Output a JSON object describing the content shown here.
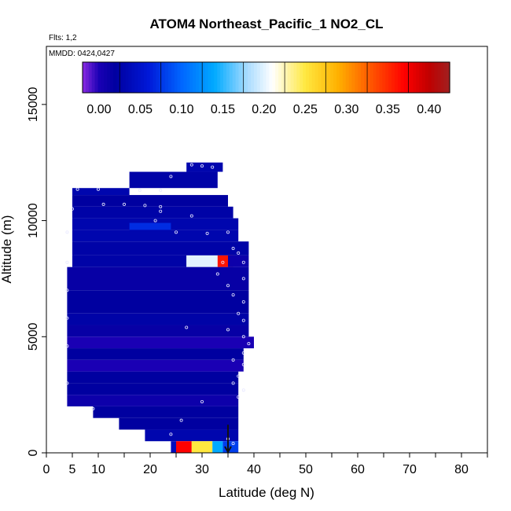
{
  "chart_data": {
    "type": "heatmap",
    "title": "ATOM4 Northeast_Pacific_1 NO2_CL",
    "subtitle_lines": [
      "Flts: 1,2",
      "MMDD: 0424,0427"
    ],
    "xlabel": "Latitude (deg N)",
    "ylabel": "Altitude (m)",
    "xlim": [
      0,
      85
    ],
    "ylim": [
      0,
      17500
    ],
    "x_ticks": [
      0,
      5,
      10,
      20,
      30,
      40,
      50,
      60,
      70,
      80
    ],
    "x_minor_ticks": [
      15,
      25,
      35,
      45,
      55,
      65,
      75,
      85
    ],
    "y_ticks": [
      0,
      5000,
      10000,
      15000
    ],
    "colorbar": {
      "min": -0.02,
      "max": 0.425,
      "ticks": [
        0.0,
        0.05,
        0.1,
        0.15,
        0.2,
        0.25,
        0.3,
        0.35,
        0.4
      ],
      "tick_labels": [
        "0.00",
        "0.05",
        "0.10",
        "0.15",
        "0.20",
        "0.25",
        "0.30",
        "0.35",
        "0.40"
      ],
      "stops": [
        {
          "v": -0.02,
          "c": "#8a2be2"
        },
        {
          "v": 0.0,
          "c": "#1a00b4"
        },
        {
          "v": 0.02,
          "c": "#0000a0"
        },
        {
          "v": 0.06,
          "c": "#0018d8"
        },
        {
          "v": 0.1,
          "c": "#0066ff"
        },
        {
          "v": 0.14,
          "c": "#00aaff"
        },
        {
          "v": 0.18,
          "c": "#aadcff"
        },
        {
          "v": 0.21,
          "c": "#ffffff"
        },
        {
          "v": 0.25,
          "c": "#ffe840"
        },
        {
          "v": 0.29,
          "c": "#ffb000"
        },
        {
          "v": 0.33,
          "c": "#ff5500"
        },
        {
          "v": 0.37,
          "c": "#ff0000"
        },
        {
          "v": 0.4,
          "c": "#c00000"
        },
        {
          "v": 0.425,
          "c": "#a02020"
        }
      ]
    },
    "cells": [
      [
        27,
        34,
        12100,
        12500,
        0.03
      ],
      [
        16,
        33,
        11400,
        12100,
        0.025
      ],
      [
        5,
        16,
        11100,
        11400,
        0.03
      ],
      [
        5,
        35,
        10600,
        11100,
        0.02
      ],
      [
        5,
        36,
        10100,
        10600,
        0.025
      ],
      [
        5,
        37,
        9600,
        10100,
        0.03
      ],
      [
        16,
        24,
        9400,
        9900,
        0.07
      ],
      [
        5,
        37,
        9100,
        9600,
        0.03
      ],
      [
        5,
        39,
        8500,
        9100,
        0.025
      ],
      [
        5,
        27,
        8000,
        8500,
        0.025
      ],
      [
        27,
        33,
        8000,
        8500,
        0.2
      ],
      [
        33,
        36,
        8000,
        8500,
        0.36
      ],
      [
        35,
        39,
        8000,
        8500,
        0.01
      ],
      [
        4,
        39,
        7000,
        8000,
        0.015
      ],
      [
        4,
        39,
        6000,
        7000,
        0.02
      ],
      [
        4,
        39,
        5500,
        6000,
        0.025
      ],
      [
        4,
        39,
        5000,
        5500,
        0.015
      ],
      [
        4,
        40,
        4500,
        5000,
        0.0
      ],
      [
        4,
        38,
        4000,
        4500,
        0.02
      ],
      [
        4,
        38,
        3500,
        4000,
        0.0
      ],
      [
        4,
        37,
        3000,
        3500,
        0.02
      ],
      [
        4,
        37,
        2500,
        3000,
        0.02
      ],
      [
        4,
        37,
        2000,
        2500,
        0.01
      ],
      [
        9,
        37,
        1500,
        2000,
        0.02
      ],
      [
        14,
        37,
        1000,
        1500,
        0.02
      ],
      [
        19,
        37,
        500,
        1000,
        0.03
      ],
      [
        24,
        25,
        0,
        500,
        0.04
      ],
      [
        25,
        28,
        0,
        500,
        0.37
      ],
      [
        28,
        32,
        0,
        500,
        0.25
      ],
      [
        32,
        34,
        0,
        500,
        0.14
      ],
      [
        34,
        37,
        0,
        500,
        0.08
      ]
    ],
    "points": [
      [
        28,
        12400
      ],
      [
        30,
        12350
      ],
      [
        32,
        12300
      ],
      [
        24,
        11900
      ],
      [
        22,
        11300
      ],
      [
        18,
        11300
      ],
      [
        10,
        11350
      ],
      [
        6,
        11350
      ],
      [
        11,
        10700
      ],
      [
        15,
        10700
      ],
      [
        19,
        10650
      ],
      [
        22,
        10600
      ],
      [
        22,
        10400
      ],
      [
        28,
        10200
      ],
      [
        21,
        10000
      ],
      [
        25,
        9500
      ],
      [
        31,
        9450
      ],
      [
        35,
        9500
      ],
      [
        36,
        8800
      ],
      [
        37,
        8600
      ],
      [
        34,
        8200
      ],
      [
        38,
        8200
      ],
      [
        33,
        7700
      ],
      [
        38,
        7500
      ],
      [
        35,
        7200
      ],
      [
        36,
        6800
      ],
      [
        38,
        6500
      ],
      [
        37,
        6000
      ],
      [
        38,
        5700
      ],
      [
        35,
        5300
      ],
      [
        38,
        5000
      ],
      [
        39,
        4700
      ],
      [
        38,
        4300
      ],
      [
        36,
        4000
      ],
      [
        38,
        3800
      ],
      [
        37,
        3300
      ],
      [
        36,
        3000
      ],
      [
        38,
        2700
      ],
      [
        37,
        2400
      ],
      [
        30,
        2200
      ],
      [
        26,
        1400
      ],
      [
        24,
        800
      ],
      [
        35,
        600
      ],
      [
        36,
        400
      ],
      [
        5,
        10500
      ],
      [
        4,
        9500
      ],
      [
        4,
        8200
      ],
      [
        4,
        7000
      ],
      [
        4,
        5800
      ],
      [
        4,
        4600
      ],
      [
        4,
        3000
      ],
      [
        9,
        1900
      ],
      [
        27,
        5400
      ]
    ],
    "arrow": {
      "x": 35,
      "y_from": 600,
      "y_to": 0
    }
  }
}
